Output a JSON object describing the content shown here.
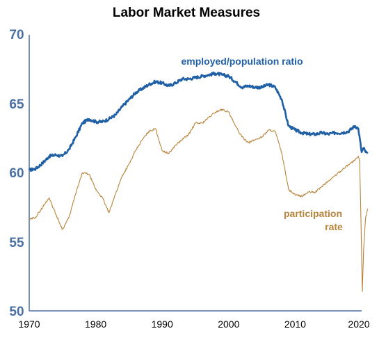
{
  "chart_data": {
    "type": "line",
    "title": "Labor Market Measures",
    "xlabel": "",
    "ylabel": "",
    "xlim": [
      1970,
      2020
    ],
    "ylim": [
      50,
      70
    ],
    "yticks": [
      "70",
      "65",
      "60",
      "55",
      "50"
    ],
    "xticks": [
      "1970",
      "1980",
      "1990",
      "2000",
      "2010",
      "2020"
    ],
    "grid": false,
    "legend": "none",
    "colors": {
      "employed": "#1f5fa5",
      "participation": "#b8843a",
      "axis": "#4a6fa5"
    },
    "series": [
      {
        "name": "employed/population ratio",
        "label": "employed/population ratio",
        "x": [
          1970,
          1971,
          1972,
          1973,
          1974,
          1975,
          1976,
          1977,
          1978,
          1979,
          1980,
          1981,
          1982,
          1983,
          1984,
          1985,
          1986,
          1987,
          1988,
          1989,
          1990,
          1991,
          1992,
          1993,
          1994,
          1995,
          1996,
          1997,
          1998,
          1999,
          2000,
          2001,
          2002,
          2003,
          2004,
          2005,
          2006,
          2007,
          2008,
          2009,
          2010,
          2011,
          2012,
          2013,
          2014,
          2015,
          2016,
          2017,
          2018,
          2019,
          2019.5,
          2020,
          2020.3,
          2020.6,
          2020.9
        ],
        "y": [
          60.2,
          60.3,
          60.7,
          61.2,
          61.3,
          61.2,
          61.7,
          62.6,
          63.6,
          63.9,
          63.7,
          63.7,
          63.9,
          64.2,
          64.8,
          65.3,
          65.8,
          66.1,
          66.4,
          66.6,
          66.5,
          66.3,
          66.5,
          66.8,
          66.8,
          66.9,
          67.0,
          67.1,
          67.2,
          67.1,
          67.0,
          66.6,
          66.2,
          66.3,
          66.2,
          66.2,
          66.4,
          66.2,
          65.3,
          63.4,
          63.1,
          62.9,
          62.8,
          62.8,
          62.9,
          62.8,
          62.9,
          62.9,
          63.0,
          63.4,
          63.2,
          61.5,
          61.8,
          61.5,
          61.4
        ]
      },
      {
        "name": "participation rate",
        "label": "participation rate",
        "x": [
          1970,
          1971,
          1972,
          1973,
          1974,
          1975,
          1976,
          1977,
          1978,
          1979,
          1980,
          1981,
          1982,
          1983,
          1984,
          1985,
          1986,
          1987,
          1988,
          1989,
          1990,
          1991,
          1992,
          1993,
          1994,
          1995,
          1996,
          1997,
          1998,
          1999,
          2000,
          2001,
          2002,
          2003,
          2004,
          2005,
          2006,
          2007,
          2008,
          2009,
          2010,
          2011,
          2012,
          2013,
          2014,
          2015,
          2016,
          2017,
          2018,
          2019,
          2019.5,
          2019.7,
          2019.9,
          2020.1,
          2020.3,
          2020.6,
          2020.9
        ],
        "y": [
          56.6,
          56.8,
          57.5,
          58.2,
          57.0,
          55.9,
          56.8,
          58.5,
          60.0,
          59.9,
          58.8,
          58.2,
          57.1,
          58.5,
          59.8,
          60.6,
          61.6,
          62.4,
          63.0,
          63.2,
          61.6,
          61.4,
          62.0,
          62.4,
          62.8,
          63.6,
          63.6,
          64.0,
          64.4,
          64.6,
          64.4,
          63.4,
          62.6,
          62.2,
          62.4,
          62.6,
          63.1,
          63.0,
          61.4,
          58.8,
          58.4,
          58.3,
          58.6,
          58.6,
          59.0,
          59.4,
          59.8,
          60.2,
          60.6,
          60.9,
          61.2,
          60.8,
          56.5,
          51.4,
          54.5,
          56.8,
          57.4
        ]
      }
    ],
    "annotations": [
      {
        "text": "employed/population ratio"
      },
      {
        "text": "participation"
      },
      {
        "text": "rate"
      }
    ]
  }
}
